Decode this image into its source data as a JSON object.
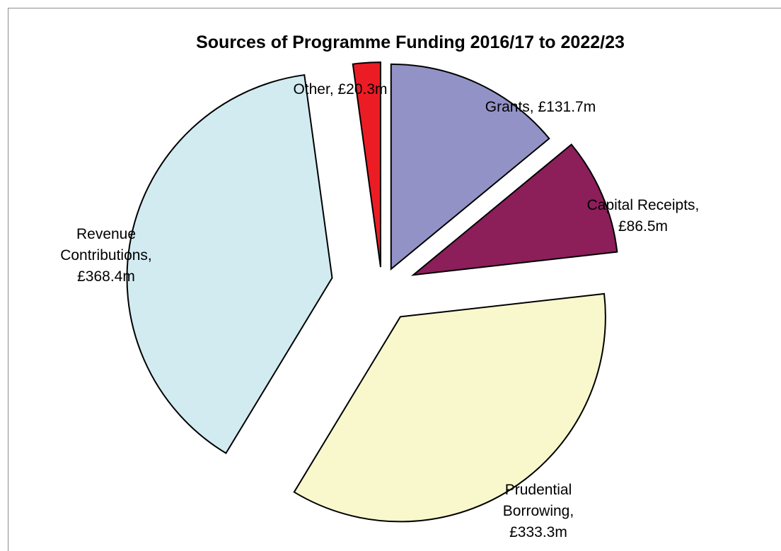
{
  "chart_data": {
    "type": "pie",
    "title": "Sources of Programme Funding 2016/17 to 2022/23",
    "exploded": true,
    "slices": [
      {
        "name": "Grants",
        "value": 131.7,
        "label": [
          "Grants, £131.7m"
        ],
        "color": "#9392c7"
      },
      {
        "name": "Capital Receipts",
        "value": 86.5,
        "label": [
          "Capital Receipts,",
          "£86.5m"
        ],
        "color": "#8c1e5a"
      },
      {
        "name": "Prudential Borrowing",
        "value": 333.3,
        "label": [
          "Prudential",
          "Borrowing,",
          "£333.3m"
        ],
        "color": "#f9f8cc"
      },
      {
        "name": "Revenue Contributions",
        "value": 368.4,
        "label": [
          "Revenue",
          "Contributions,",
          "£368.4m"
        ],
        "color": "#d1ebf1"
      },
      {
        "name": "Other",
        "value": 20.3,
        "label": [
          "Other, £20.3m"
        ],
        "color": "#ec1c24"
      }
    ],
    "unit": "£m",
    "legend": "none"
  }
}
